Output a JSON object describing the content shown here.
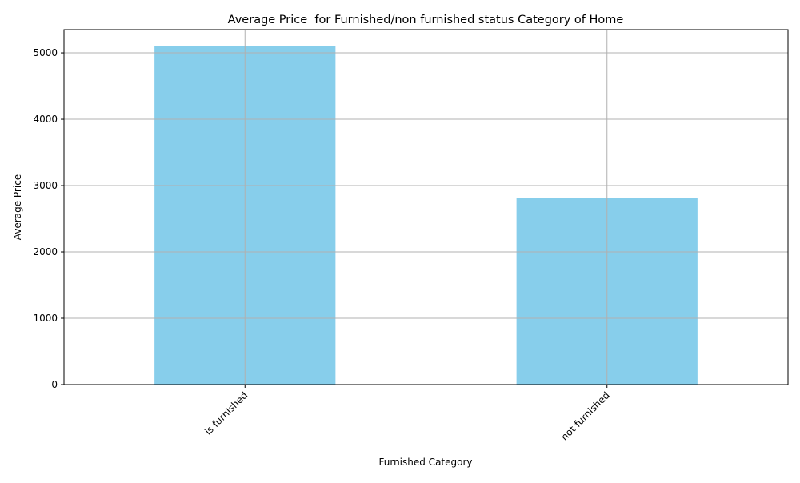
{
  "chart_data": {
    "type": "bar",
    "title": "Average Price  for Furnished/non furnished status Category of Home",
    "xlabel": "Furnished Category",
    "ylabel": "Average Price",
    "categories": [
      "is furnished",
      "not furnished"
    ],
    "values": [
      5100,
      2810
    ],
    "ylim": [
      0,
      5350
    ],
    "yticks": [
      0,
      1000,
      2000,
      3000,
      4000,
      5000
    ],
    "ytick_labels": [
      "0",
      "1000",
      "2000",
      "3000",
      "4000",
      "5000"
    ],
    "grid": true,
    "legend": "none",
    "bar_color": "#87CEEB",
    "grid_color": "#b0b0b0",
    "xtick_rotation_deg": 45
  }
}
